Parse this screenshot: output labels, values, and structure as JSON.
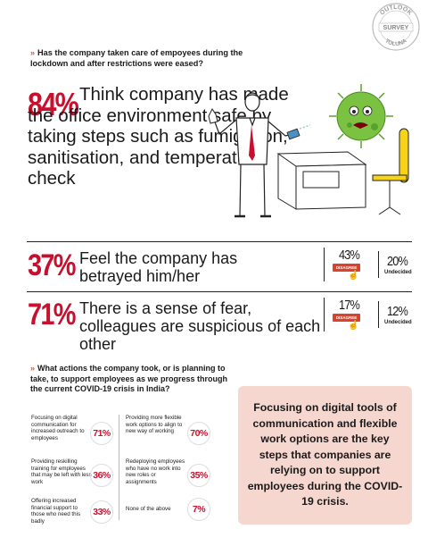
{
  "seal": {
    "top": "OUTLOOK",
    "middle": "SURVEY",
    "bottom": "TOLUNA"
  },
  "q1": {
    "text": "Has the company taken care of empoyees during the lockdown and after restrictions were eased?"
  },
  "stat1": {
    "value": "84%",
    "text": "Think company has made the office environment safe by taking steps such as fumigation, sanitisation, and temperature check"
  },
  "stat2": {
    "value": "37%",
    "text": "Feel the company has betrayed him/her",
    "disagree_pct": "43%",
    "disagree_label": "DISAGREE",
    "undecided_pct": "20%",
    "undecided_label": "Undecided"
  },
  "stat3": {
    "value": "71%",
    "text": "There is a sense of fear, colleagues are suspicious of each other",
    "disagree_pct": "17%",
    "disagree_label": "DISAGREE",
    "undecided_pct": "12%",
    "undecided_label": "Undecided"
  },
  "q2": {
    "text": "What actions the company took, or is planning to take, to support employees as we progress through the current COVID-19 crisis in India?"
  },
  "options_left": [
    {
      "text": "Focusing on digital communication for increased outreach to employees",
      "pct": "71%"
    },
    {
      "text": "Providing reskilling training for employees that may be left with less work",
      "pct": "36%"
    },
    {
      "text": "Offering increased financial support to those who need this badly",
      "pct": "33%"
    }
  ],
  "options_right": [
    {
      "text": "Providing more flexible work options to align to new way of working",
      "pct": "70%"
    },
    {
      "text": "Redeploying employees who have no work into new roles or assignments",
      "pct": "35%"
    },
    {
      "text": "None of the above",
      "pct": "7%"
    }
  ],
  "callout": {
    "text": "Focusing on digital tools of communication and flexible work options are the key steps that companies are relying on to support employees during the COVID-19 crisis."
  },
  "colors": {
    "accent": "#c8102e",
    "chevron": "#e4572e",
    "callout_bg": "#f6d7cf",
    "virus": "#7cc242"
  }
}
